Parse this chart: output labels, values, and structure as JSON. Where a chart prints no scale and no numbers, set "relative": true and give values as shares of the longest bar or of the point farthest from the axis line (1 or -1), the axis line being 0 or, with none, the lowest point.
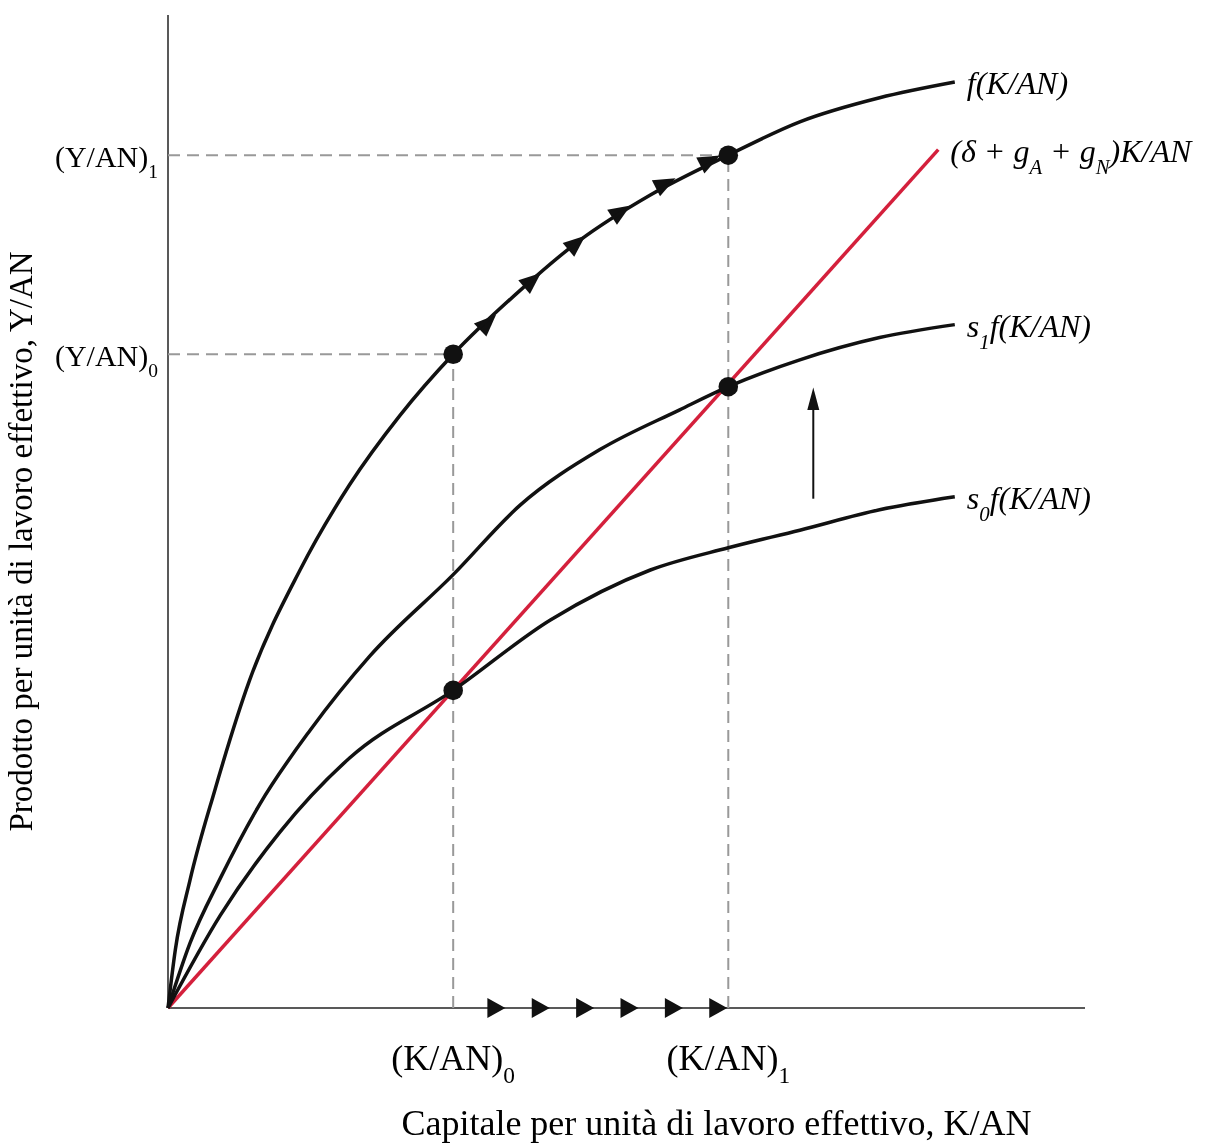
{
  "chart_data": {
    "type": "line",
    "relative": true,
    "xlabel": "Capitale per unità di lavoro effettivo, K/AN",
    "ylabel": "Prodotto per unità di lavoro effettivo, Y/AN",
    "xlim": [
      0,
      1
    ],
    "xticks": [
      {
        "value": 0.311,
        "label": "(K/AN)$_{0}$"
      },
      {
        "value": 0.611,
        "label": "(K/AN)$_{1}$"
      }
    ],
    "ref_lines": [
      {
        "axis": "x",
        "value": 0.311,
        "line_style": "dashed",
        "color": "#999999"
      },
      {
        "axis": "x",
        "value": 0.611,
        "line_style": "dashed",
        "color": "#999999"
      },
      {
        "axis": "y",
        "value": 0.706,
        "label": "(Y/AN)$_{0}$",
        "line_style": "dashed",
        "color": "#999999"
      },
      {
        "axis": "y",
        "value": 0.921,
        "label": "(Y/AN)$_{1}$",
        "line_style": "dashed",
        "color": "#999999"
      }
    ],
    "series": [
      {
        "name": "f(K/AN)",
        "color": "#111111",
        "x": [
          0,
          0.008,
          0.024,
          0.051,
          0.089,
          0.144,
          0.198,
          0.253,
          0.311,
          0.384,
          0.449,
          0.526,
          0.611,
          0.689,
          0.776,
          0.858
        ],
        "values": [
          0,
          0.063,
          0.138,
          0.235,
          0.354,
          0.473,
          0.565,
          0.64,
          0.706,
          0.775,
          0.829,
          0.878,
          0.921,
          0.957,
          0.983,
          1
        ]
      },
      {
        "name": "(δ + g$_{A}$ + g$_{N}$)K/AN",
        "color": "#d4203c",
        "x": [
          0,
          0.84
        ],
        "values": [
          0,
          0.927
        ]
      },
      {
        "name": "s$_{1}$f(K/AN)",
        "color": "#111111",
        "x": [
          0,
          0.024,
          0.057,
          0.1,
          0.155,
          0.22,
          0.311,
          0.384,
          0.471,
          0.558,
          0.611,
          0.689,
          0.776,
          0.858
        ],
        "values": [
          0,
          0.07,
          0.14,
          0.22,
          0.3,
          0.38,
          0.468,
          0.543,
          0.603,
          0.646,
          0.671,
          0.7,
          0.724,
          0.738
        ]
      },
      {
        "name": "s$_{0}$f(K/AN)",
        "color": "#111111",
        "x": [
          0,
          0.057,
          0.122,
          0.198,
          0.311,
          0.417,
          0.526,
          0.611,
          0.689,
          0.776,
          0.858
        ],
        "values": [
          0,
          0.1,
          0.19,
          0.27,
          0.343,
          0.419,
          0.473,
          0.497,
          0.516,
          0.538,
          0.552
        ]
      },
      {
        "type": "scatter",
        "color": "#111111",
        "marker": "circle",
        "x": [
          0.311,
          0.611,
          0.311,
          0.611
        ],
        "values": [
          0.706,
          0.921,
          0.343,
          0.671
        ]
      }
    ],
    "line_style": "solid"
  }
}
